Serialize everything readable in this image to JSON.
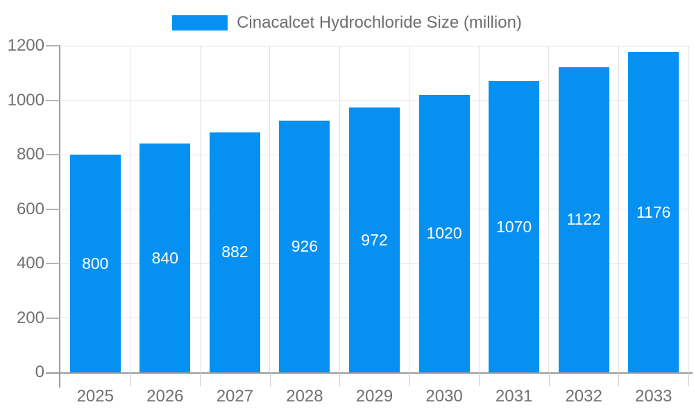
{
  "legend": {
    "label": "Cinacalcet Hydrochloride Size (million)",
    "position": "top-center"
  },
  "chart_data": {
    "type": "bar",
    "title": "Cinacalcet Hydrochloride Size (million)",
    "categories": [
      "2025",
      "2026",
      "2027",
      "2028",
      "2029",
      "2030",
      "2031",
      "2032",
      "2033"
    ],
    "series": [
      {
        "name": "Cinacalcet Hydrochloride Size (million)",
        "values": [
          800,
          840,
          882,
          926,
          972,
          1020,
          1070,
          1122,
          1176
        ]
      }
    ],
    "bar_value_labels": [
      "800",
      "840",
      "882",
      "926",
      "972",
      "1020",
      "1070",
      "1122",
      "1176"
    ],
    "xlabel": "",
    "ylabel": "",
    "ylim": [
      0,
      1200
    ],
    "yticks": [
      0,
      200,
      400,
      600,
      800,
      1000,
      1200
    ],
    "grid": true,
    "legend_position": "top-center",
    "colors": {
      "bar": "#0590f2",
      "bar_label_text": "#ffffff",
      "grid_line": "#e3e3e3",
      "axis_line": "#9b9b9b",
      "y_tick_mark": "#b3b3b3",
      "x_tick_mark": "#c9c9c9",
      "tick_label_text": "#707070",
      "legend_text": "#6d6d6d",
      "background": "#ffffff"
    }
  }
}
